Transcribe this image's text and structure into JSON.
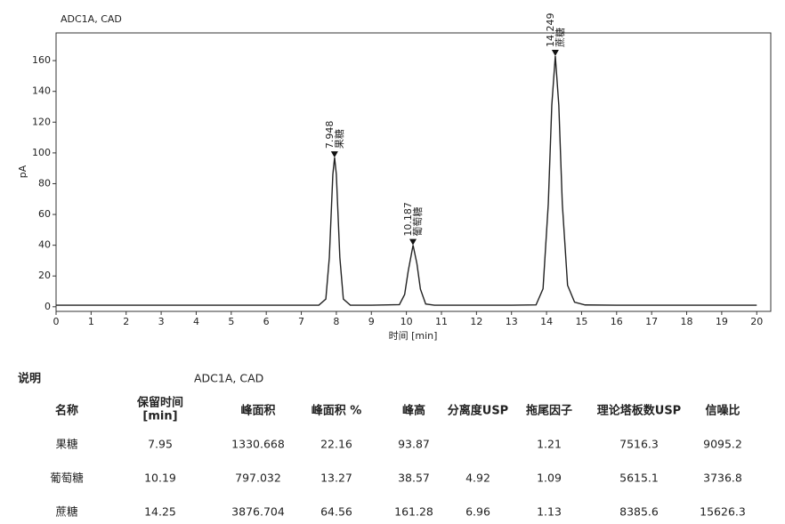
{
  "chart_data": {
    "type": "line",
    "title": "ADC1A, CAD",
    "y_label": "pA",
    "x_label": "时间 [min]",
    "color": "#222222",
    "x": [
      0,
      1,
      2,
      3,
      4,
      5,
      6,
      7,
      7.5,
      7.7,
      7.8,
      7.9,
      7.95,
      8,
      8.1,
      8.2,
      8.4,
      9,
      9.8,
      9.95,
      10.05,
      10.19,
      10.3,
      10.4,
      10.55,
      10.8,
      11,
      12,
      13,
      13.7,
      13.9,
      14.05,
      14.15,
      14.25,
      14.35,
      14.45,
      14.6,
      14.8,
      15.1,
      16,
      17,
      18,
      19,
      20
    ],
    "values": [
      1,
      1,
      1,
      1,
      1,
      1,
      1,
      1,
      1,
      5,
      32,
      86,
      97,
      86,
      32,
      5,
      1,
      1,
      1.4,
      8,
      23,
      40,
      28,
      11.5,
      1.8,
      1,
      1,
      1,
      1,
      1.2,
      11.7,
      67,
      131,
      163,
      131,
      67,
      14,
      3,
      1.2,
      1,
      1,
      1,
      1,
      1
    ],
    "xlim": [
      0,
      20.4
    ],
    "ylim": [
      -3,
      178
    ],
    "xticks": [
      0,
      1,
      2,
      3,
      4,
      5,
      6,
      7,
      8,
      9,
      10,
      11,
      12,
      13,
      14,
      15,
      16,
      17,
      18,
      19,
      20
    ],
    "yticks": [
      0,
      20,
      40,
      60,
      80,
      100,
      120,
      140,
      160
    ],
    "peaks": [
      {
        "x": 7.948,
        "y": 97,
        "label": "果糖"
      },
      {
        "x": 10.187,
        "y": 40,
        "label": "葡萄糖"
      },
      {
        "x": 14.249,
        "y": 163,
        "label": "蔗糖"
      }
    ]
  },
  "table": {
    "caption": "说明",
    "signal": "ADC1A, CAD",
    "headers": [
      [
        "名称"
      ],
      [
        "保留时间",
        "[min]"
      ],
      [
        "峰面积"
      ],
      [
        "峰面积 %"
      ],
      [
        "峰高"
      ],
      [
        "分离度USP"
      ],
      [
        "拖尾因子"
      ],
      [
        "理论塔板数USP"
      ],
      [
        "信噪比"
      ]
    ],
    "rows": [
      [
        "果糖",
        "7.95",
        "1330.668",
        "22.16",
        "93.87",
        null,
        "1.21",
        "7516.3",
        "9095.2"
      ],
      [
        "葡萄糖",
        "10.19",
        "797.032",
        "13.27",
        "38.57",
        "4.92",
        "1.09",
        "5615.1",
        "3736.8"
      ],
      [
        "蔗糖",
        "14.25",
        "3876.704",
        "64.56",
        "161.28",
        "6.96",
        "1.13",
        "8385.6",
        "15626.3"
      ]
    ]
  }
}
